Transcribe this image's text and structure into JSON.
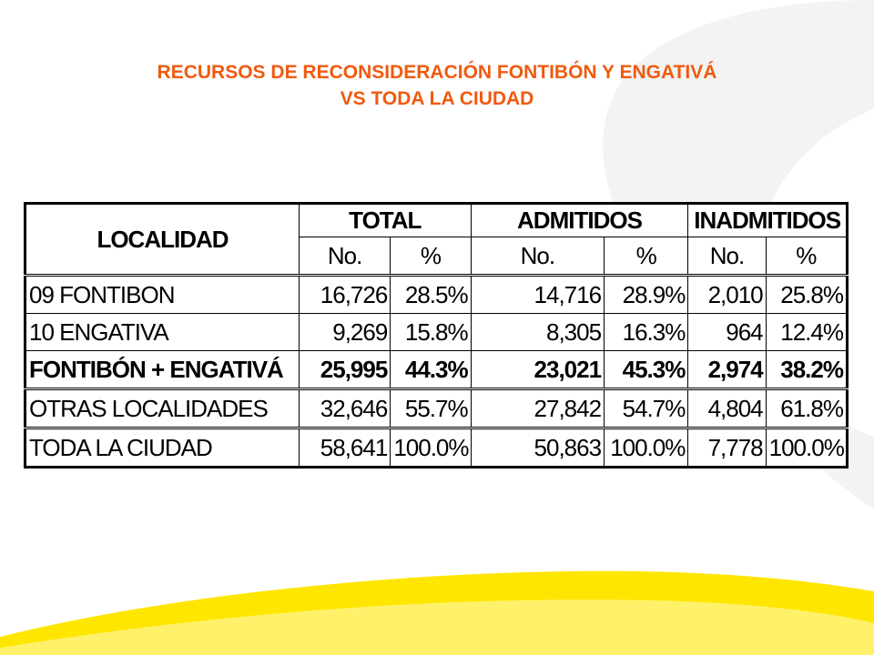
{
  "title": {
    "line1": "RECURSOS DE RECONSIDERACIÓN FONTIBÓN Y ENGATIVÁ",
    "line2": "VS TODA LA CIUDAD"
  },
  "colors": {
    "title": "#f05a0f",
    "swoosh_yellow": "#ffe600",
    "swoosh_gray": "#f2f2f2"
  },
  "table": {
    "header": {
      "localidad": "LOCALIDAD",
      "groups": [
        "TOTAL",
        "ADMITIDOS",
        "INADMITIDOS"
      ],
      "sub": [
        "No.",
        "%",
        "No.",
        "%",
        "No.",
        "%"
      ]
    },
    "rows": [
      {
        "name": "09 FONTIBON",
        "cells": [
          "16,726",
          "28.5%",
          "14,716",
          "28.9%",
          "2,010",
          "25.8%"
        ]
      },
      {
        "name": "10 ENGATIVA",
        "cells": [
          "9,269",
          "15.8%",
          "8,305",
          "16.3%",
          "964",
          "12.4%"
        ]
      },
      {
        "name": "FONTIBÓN + ENGATIVÁ",
        "cells": [
          "25,995",
          "44.3%",
          "23,021",
          "45.3%",
          "2,974",
          "38.2%"
        ]
      },
      {
        "name": "OTRAS LOCALIDADES",
        "cells": [
          "32,646",
          "55.7%",
          "27,842",
          "54.7%",
          "4,804",
          "61.8%"
        ]
      },
      {
        "name": "TODA LA CIUDAD",
        "cells": [
          "58,641",
          "100.0%",
          "50,863",
          "100.0%",
          "7,778",
          "100.0%"
        ]
      }
    ]
  }
}
